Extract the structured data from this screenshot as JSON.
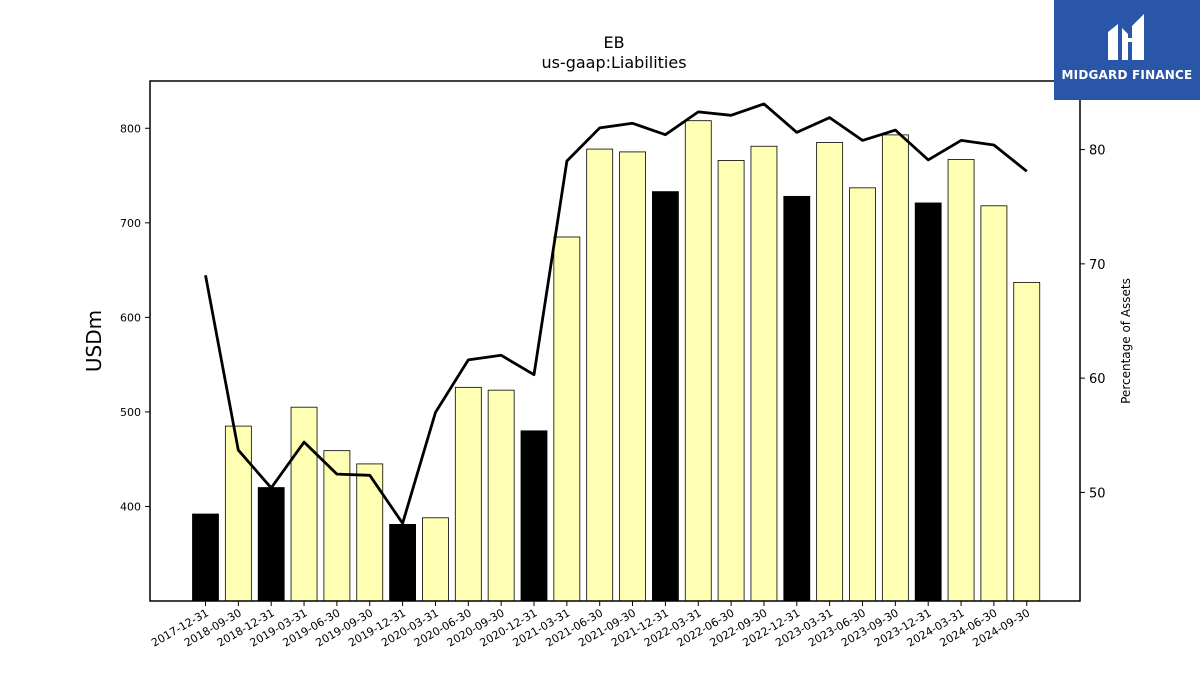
{
  "logo": {
    "text": "MIDGARD FINANCE",
    "icon": "midgard-mark-icon"
  },
  "colors": {
    "bar_normal": "#ffffb3",
    "bar_highlight": "#000000",
    "line": "#000000",
    "logo_bg": "#2a56a8"
  },
  "chart_data": {
    "type": "bar",
    "title": "EB",
    "subtitle": "us-gaap:Liabilities",
    "ylabel": "USDm",
    "y2label": "Percentage of Assets",
    "ylim": [
      300,
      850
    ],
    "y2lim": [
      40.5,
      86
    ],
    "yticks": [
      400,
      500,
      600,
      700,
      800
    ],
    "y2ticks": [
      50,
      60,
      70,
      80
    ],
    "categories": [
      "2017-12-31",
      "2018-09-30",
      "2018-12-31",
      "2019-03-31",
      "2019-06-30",
      "2019-09-30",
      "2019-12-31",
      "2020-03-31",
      "2020-06-30",
      "2020-09-30",
      "2020-12-31",
      "2021-03-31",
      "2021-06-30",
      "2021-09-30",
      "2021-12-31",
      "2022-03-31",
      "2022-06-30",
      "2022-09-30",
      "2022-12-31",
      "2023-03-31",
      "2023-06-30",
      "2023-09-30",
      "2023-12-31",
      "2024-03-31",
      "2024-06-30",
      "2024-09-30"
    ],
    "series": [
      {
        "type": "bar",
        "values": [
          392,
          485,
          420,
          505,
          459,
          445,
          381,
          388,
          526,
          523,
          480,
          685,
          778,
          775,
          733,
          808,
          766,
          781,
          728,
          785,
          737,
          793,
          721,
          767,
          718,
          637
        ],
        "highlight": [
          true,
          false,
          true,
          false,
          false,
          false,
          true,
          false,
          false,
          false,
          true,
          false,
          false,
          false,
          true,
          false,
          false,
          false,
          true,
          false,
          false,
          false,
          true,
          false,
          false,
          false
        ]
      },
      {
        "type": "line",
        "axis": "right",
        "values": [
          69.0,
          53.7,
          50.4,
          54.4,
          51.6,
          51.5,
          47.3,
          57.0,
          61.6,
          62.0,
          60.3,
          79.0,
          81.9,
          82.3,
          81.3,
          83.3,
          83.0,
          84.0,
          81.5,
          82.8,
          80.8,
          81.7,
          79.1,
          80.8,
          80.4,
          78.1
        ]
      }
    ],
    "grid": false,
    "legend": "none"
  }
}
